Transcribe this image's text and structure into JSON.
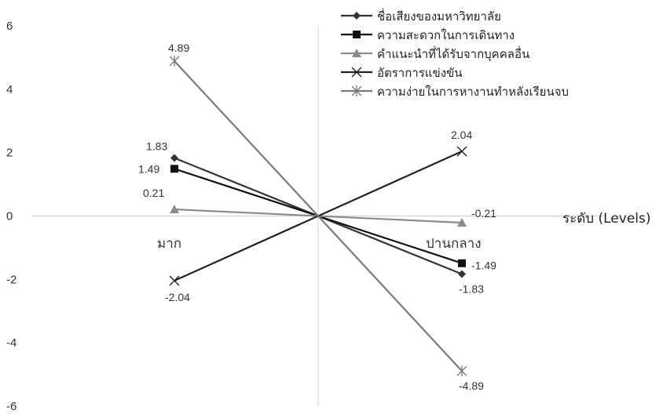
{
  "chart_data": {
    "type": "line",
    "categories": [
      "มาก",
      "ปานกลาง"
    ],
    "xlabel": "ระดับ (Levels)",
    "ylabel": "",
    "ylim": [
      -6,
      6
    ],
    "yticks": [
      -6,
      -4,
      -2,
      0,
      2,
      4,
      6
    ],
    "grid": false,
    "legend_position": "top-right",
    "series": [
      {
        "name": "ชื่อเสียงของมหาวิทยาลัย",
        "values": [
          1.83,
          -1.83
        ],
        "labels": [
          "1.83",
          "-1.83"
        ],
        "color": "#333333",
        "marker": "diamond"
      },
      {
        "name": "ความสะดวกในการเดินทาง",
        "values": [
          1.49,
          -1.49
        ],
        "labels": [
          "1.49",
          "-1.49"
        ],
        "color": "#111111",
        "marker": "square"
      },
      {
        "name": "คำแนะนำที่ได้รับจากบุคคลอื่น",
        "values": [
          0.21,
          -0.21
        ],
        "labels": [
          "0.21",
          "-0.21"
        ],
        "color": "#8c8c8c",
        "marker": "triangle"
      },
      {
        "name": "อัตราการแข่งขัน",
        "values": [
          -2.04,
          2.04
        ],
        "labels": [
          "-2.04",
          "2.04"
        ],
        "color": "#222222",
        "marker": "x"
      },
      {
        "name": "ความง่ายในการหางานทำหลังเรียนจบ",
        "values": [
          4.89,
          -4.89
        ],
        "labels": [
          "4.89",
          "-4.89"
        ],
        "color": "#7a7a7a",
        "marker": "star"
      }
    ]
  }
}
